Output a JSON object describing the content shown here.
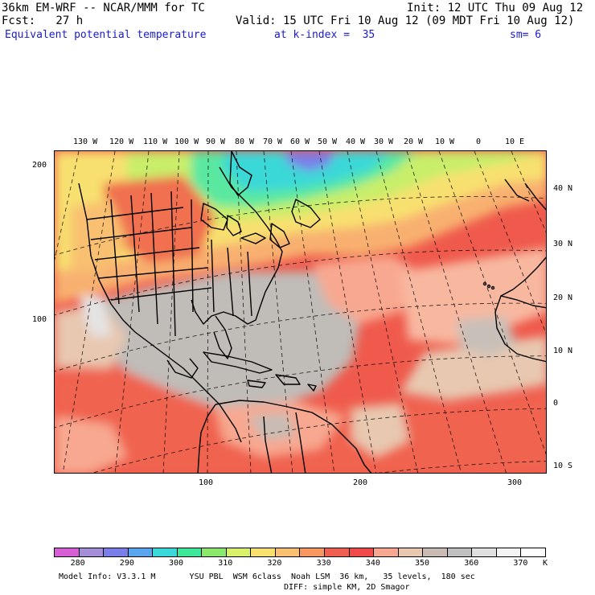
{
  "header": {
    "model_line": "36km EM-WRF -- NCAR/MMM for TC",
    "init_line": "Init: 12 UTC Thu 09 Aug 12",
    "fcst_line": "Fcst:   27 h",
    "valid_line": "Valid: 15 UTC Fri 10 Aug 12 (09 MDT Fri 10 Aug 12)",
    "field_name": "Equivalent potential temperature",
    "level_info": "at k-index =  35",
    "smoothing": "sm= 6"
  },
  "top_longitudes": [
    "130 W",
    "120 W",
    "110 W",
    "100 W",
    "90 W",
    "80 W",
    "70 W",
    "60 W",
    "50 W",
    "40 W",
    "30 W",
    "20 W",
    "10 W",
    "0",
    "10 E"
  ],
  "right_latitudes": [
    "40 N",
    "30 N",
    "20 N",
    "10 N",
    "0",
    "10 S"
  ],
  "left_grid_labels": [
    "200",
    "100"
  ],
  "bottom_grid_labels": [
    "100",
    "200",
    "300"
  ],
  "colorbar": {
    "labels": [
      "280",
      "290",
      "300",
      "310",
      "320",
      "330",
      "340",
      "350",
      "360",
      "370"
    ],
    "unit": "K",
    "colors": [
      "#d65fd6",
      "#a48ed8",
      "#7a7ee8",
      "#5aa6ee",
      "#3ad8d8",
      "#3fe79a",
      "#8ae86c",
      "#d8f06a",
      "#f8e070",
      "#f8c070",
      "#f89860",
      "#f06050",
      "#f04a4a",
      "#f8a890",
      "#e8c8b0",
      "#c8bcb4",
      "#c0c0c0",
      "#e0e0e0",
      "#f4f4f4",
      "#ffffff"
    ]
  },
  "footer": {
    "line1": "Model Info: V3.3.1 M       YSU PBL  WSM 6class  Noah LSM  36 km,   35 levels,  180 sec",
    "line2": "DIFF: simple KM, 2D Smagor"
  }
}
